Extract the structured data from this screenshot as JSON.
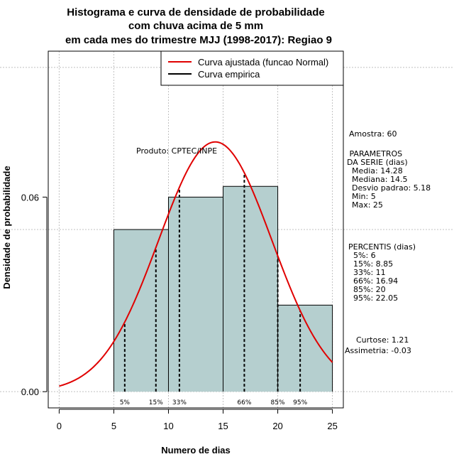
{
  "chart_data": {
    "type": "bar",
    "title_lines": [
      "Histograma e curva de densidade de probabilidade",
      "com chuva acima de 5 mm",
      "em cada mes do trimestre MJJ (1998-2017): Regiao 9"
    ],
    "xlabel": "Numero de dias",
    "ylabel": "Densidade de probabilidade",
    "xlim": [
      -1,
      26
    ],
    "ylim": [
      -0.005,
      0.105
    ],
    "x_ticks": [
      0,
      5,
      10,
      15,
      20,
      25
    ],
    "y_ticks": [
      0.0,
      0.06
    ],
    "y_tick_labels": [
      "0.00",
      "0.06"
    ],
    "grid": true,
    "grid_x": [
      0,
      5,
      10,
      15,
      20,
      25
    ],
    "grid_y": [
      0,
      0.05,
      0.1
    ],
    "bins": [
      {
        "from": 5,
        "to": 10,
        "density": 0.05
      },
      {
        "from": 10,
        "to": 15,
        "density": 0.06
      },
      {
        "from": 15,
        "to": 20,
        "density": 0.0633
      },
      {
        "from": 20,
        "to": 25,
        "density": 0.0267
      }
    ],
    "bar_color": "#b5cfcf",
    "normal_curve": {
      "mean": 14.28,
      "sd": 5.18,
      "x_from": 0,
      "x_to": 25,
      "color": "#e00000"
    },
    "percentiles": [
      {
        "label": "5%",
        "value": 6
      },
      {
        "label": "15%",
        "value": 8.85
      },
      {
        "label": "33%",
        "value": 11
      },
      {
        "label": "66%",
        "value": 16.94
      },
      {
        "label": "85%",
        "value": 20
      },
      {
        "label": "95%",
        "value": 22.05
      }
    ],
    "legend": {
      "position": "top-right",
      "entries": [
        {
          "label": "Curva ajustada (funcao Normal)",
          "color": "#e00000"
        },
        {
          "label": "Curva empirica",
          "color": "#000000"
        }
      ]
    },
    "annotation": "Produto: CPTEC/INPE"
  },
  "stats": {
    "amostra": "Amostra: 60",
    "parametros_lines": [
      " PARAMETROS",
      "DA SERIE (dias)",
      "  Media: 14.28",
      "  Mediana: 14.5",
      "  Desvio padrao: 5.18",
      "  Min: 5",
      "  Max: 25"
    ],
    "percentis_lines": [
      "PERCENTIS (dias)",
      "  5%: 6",
      "  15%: 8.85",
      "  33%: 11",
      "  66%: 16.94",
      "  85%: 20",
      "  95%: 22.05"
    ],
    "curtose": "Curtose: 1.21",
    "assimetria": "Assimetria: -0.03"
  }
}
